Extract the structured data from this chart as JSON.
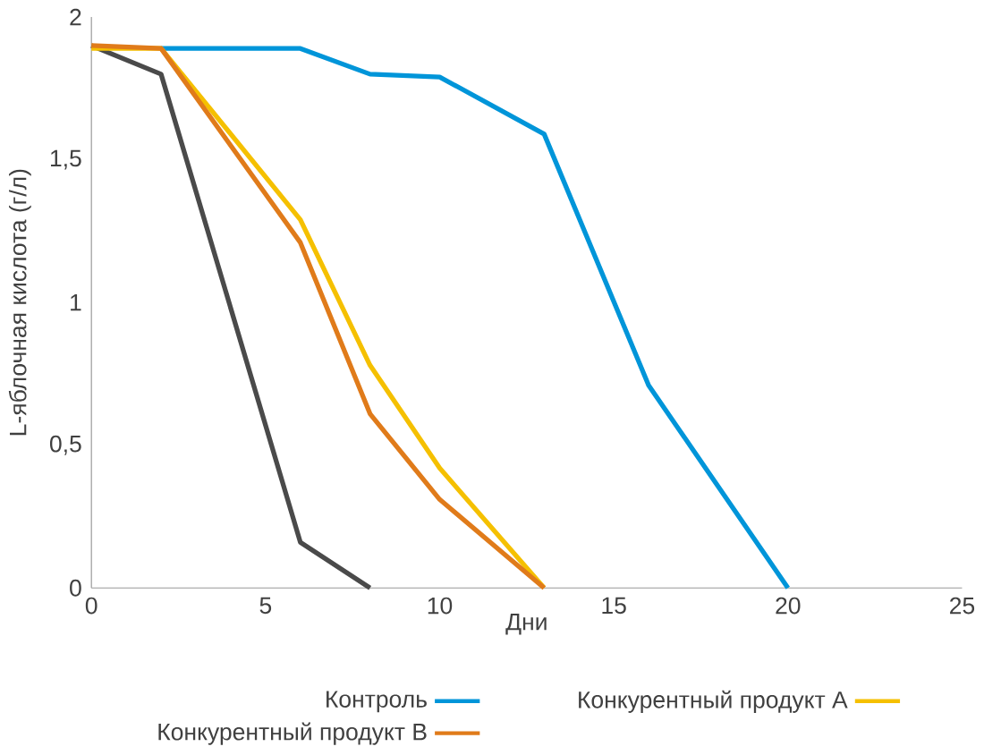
{
  "chart_data": {
    "type": "line",
    "xlabel": "Дни",
    "ylabel": "L-яблочная кислота (г/л)",
    "xlim": [
      0,
      25
    ],
    "ylim": [
      0,
      2
    ],
    "xticks": [
      0,
      5,
      10,
      15,
      20,
      25
    ],
    "yticks": [
      0,
      {
        "value": 0.5,
        "label": "0,5"
      },
      1,
      {
        "value": 1.5,
        "label": "1,5"
      },
      2
    ],
    "legend": "bottom",
    "line_style": "solid",
    "marker": "none",
    "series": [
      {
        "name": "Контроль",
        "color": "#0095d9",
        "x": [
          2,
          6,
          8,
          10,
          13,
          16,
          20
        ],
        "values": [
          1.89,
          1.89,
          1.8,
          1.79,
          1.59,
          0.71,
          0
        ]
      },
      {
        "color": "#4a4a4a",
        "x": [
          0,
          2,
          6,
          8
        ],
        "values": [
          1.9,
          1.8,
          0.16,
          0
        ]
      },
      {
        "name": "Конкурентный продукт A",
        "color": "#f5c000",
        "x": [
          0,
          2,
          6,
          8,
          10,
          13
        ],
        "values": [
          1.89,
          1.89,
          1.29,
          0.78,
          0.42,
          0
        ]
      },
      {
        "name": "Конкурентный продукт B",
        "color": "#e07b1a",
        "x": [
          0,
          2,
          6,
          8,
          10,
          13
        ],
        "values": [
          1.9,
          1.89,
          1.21,
          0.61,
          0.31,
          0
        ]
      }
    ]
  }
}
